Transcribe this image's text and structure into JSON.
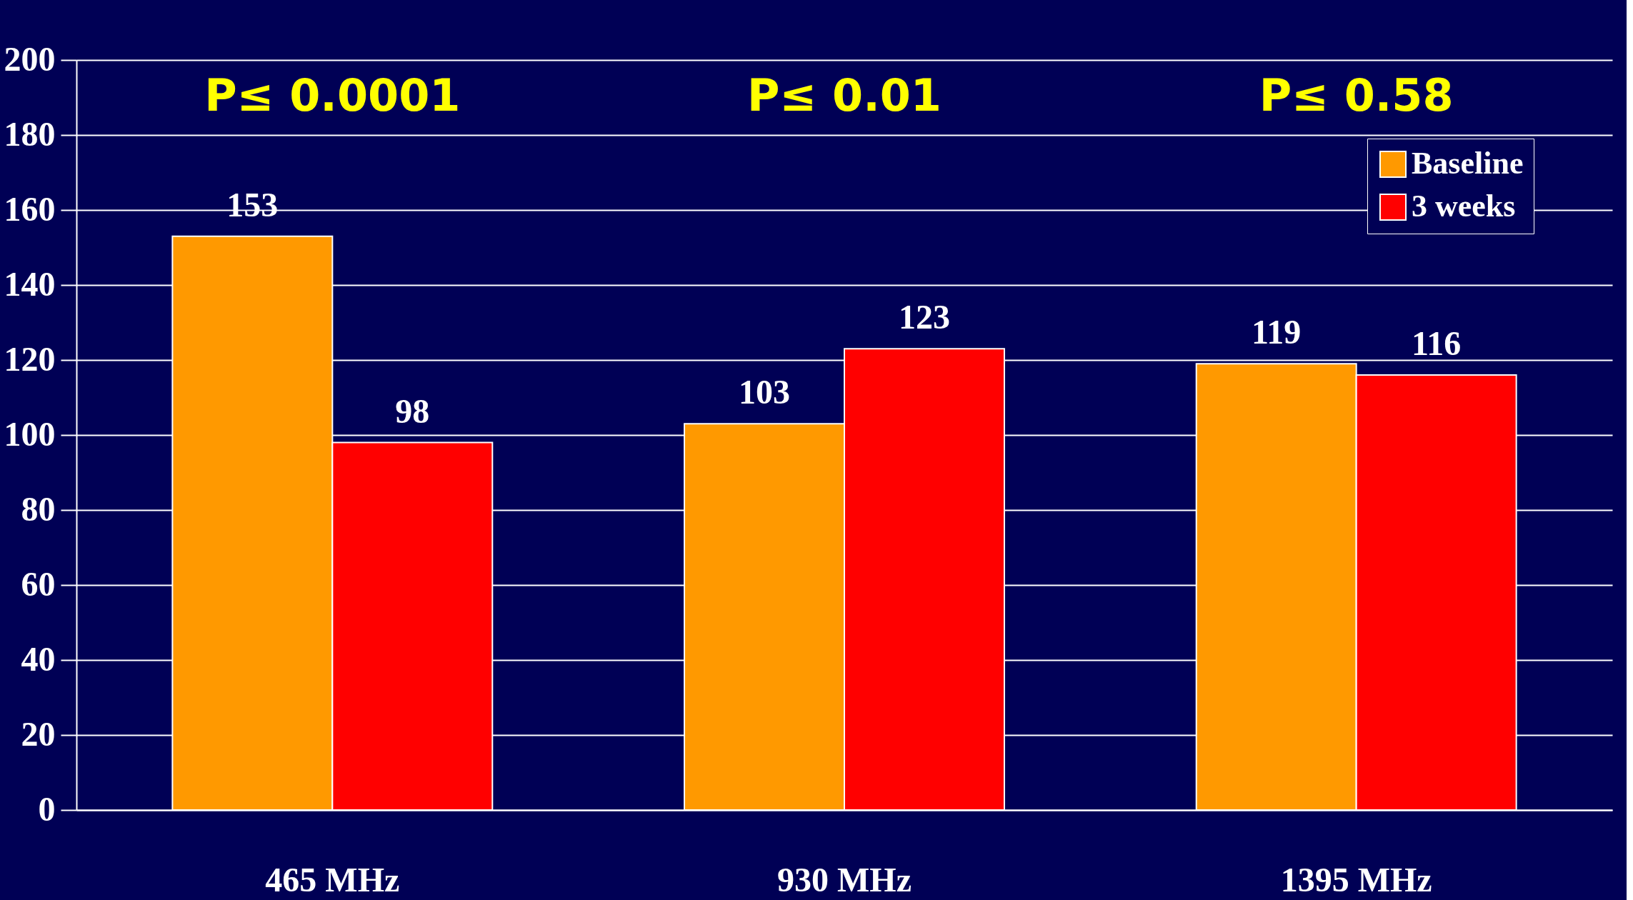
{
  "chart_data": {
    "type": "bar",
    "categories": [
      "465 MHz",
      "930 MHz",
      "1395 MHz"
    ],
    "series": [
      {
        "name": "Baseline",
        "color": "#ff9900",
        "values": [
          153,
          103,
          119
        ]
      },
      {
        "name": "3 weeks",
        "color": "#ff0000",
        "values": [
          98,
          123,
          116
        ]
      }
    ],
    "ylim": [
      0,
      200
    ],
    "yticks": [
      0,
      20,
      40,
      60,
      80,
      100,
      120,
      140,
      160,
      180,
      200
    ],
    "grid": "y",
    "legend": "top right",
    "data_labels": true,
    "annotations": [
      "P≤ 0.0001",
      "P≤ 0.01",
      "P≤ 0.58"
    ]
  }
}
